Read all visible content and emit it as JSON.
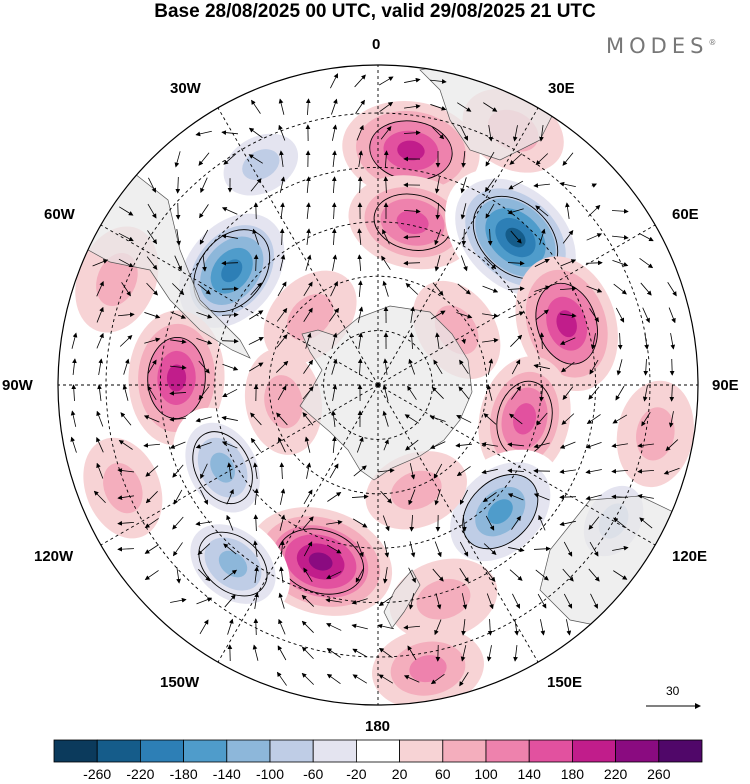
{
  "title": "Base 28/08/2025 00 UTC, valid 29/08/2025 21 UTC",
  "brand": {
    "name": "MODES",
    "mark": "®"
  },
  "longitude_labels": {
    "deg0": "0",
    "deg30e": "30E",
    "deg60e": "60E",
    "deg90e": "90E",
    "deg120e": "120E",
    "deg150e": "150E",
    "deg180": "180",
    "deg150w": "150W",
    "deg120w": "120W",
    "deg90w": "90W",
    "deg60w": "60W",
    "deg30w": "30W"
  },
  "vector_scale": {
    "label": "30"
  },
  "colorbar": {
    "colors": [
      "#0b3a5c",
      "#155c8a",
      "#2d7fb6",
      "#4f9ccb",
      "#8db7da",
      "#bfcde6",
      "#e4e4f0",
      "#ffffff",
      "#f7d3d5",
      "#f4aebd",
      "#ee82ad",
      "#e2519f",
      "#c11d8b",
      "#8a0b80",
      "#500769"
    ],
    "ticks": [
      "-260",
      "-220",
      "-180",
      "-140",
      "-100",
      "-60",
      "-20",
      "20",
      "60",
      "100",
      "140",
      "180",
      "220",
      "260"
    ]
  },
  "anomalies": [
    {
      "lon": 8,
      "r": 0.74,
      "value": 150
    },
    {
      "lon": 12,
      "r": 0.52,
      "value": 120
    },
    {
      "lon": -28,
      "r": 0.78,
      "value": -80
    },
    {
      "lon": 28,
      "r": 0.9,
      "value": 40
    },
    {
      "lon": -52,
      "r": 0.58,
      "value": -200
    },
    {
      "lon": 43,
      "r": 0.63,
      "value": -230
    },
    {
      "lon": -68,
      "r": 0.88,
      "value": 50
    },
    {
      "lon": 72,
      "r": 0.62,
      "value": 150
    },
    {
      "lon": -88,
      "r": 0.63,
      "value": 140
    },
    {
      "lon": 103,
      "r": 0.47,
      "value": 110
    },
    {
      "lon": -118,
      "r": 0.55,
      "value": -110
    },
    {
      "lon": 136,
      "r": 0.55,
      "value": -170
    },
    {
      "lon": -162,
      "r": 0.58,
      "value": 180
    },
    {
      "lon": -141,
      "r": 0.72,
      "value": -110
    },
    {
      "lon": 163,
      "r": 0.7,
      "value": 50
    },
    {
      "lon": 120,
      "r": 0.85,
      "value": -60
    },
    {
      "lon": 100,
      "r": 0.88,
      "value": 40
    },
    {
      "lon": -112,
      "r": 0.86,
      "value": 30
    },
    {
      "lon": 170,
      "r": 0.9,
      "value": 60
    },
    {
      "lon": -45,
      "r": 0.3,
      "value": 40
    },
    {
      "lon": 55,
      "r": 0.3,
      "value": 40
    },
    {
      "lon": -100,
      "r": 0.3,
      "value": 40
    },
    {
      "lon": 160,
      "r": 0.35,
      "value": 30
    }
  ]
}
